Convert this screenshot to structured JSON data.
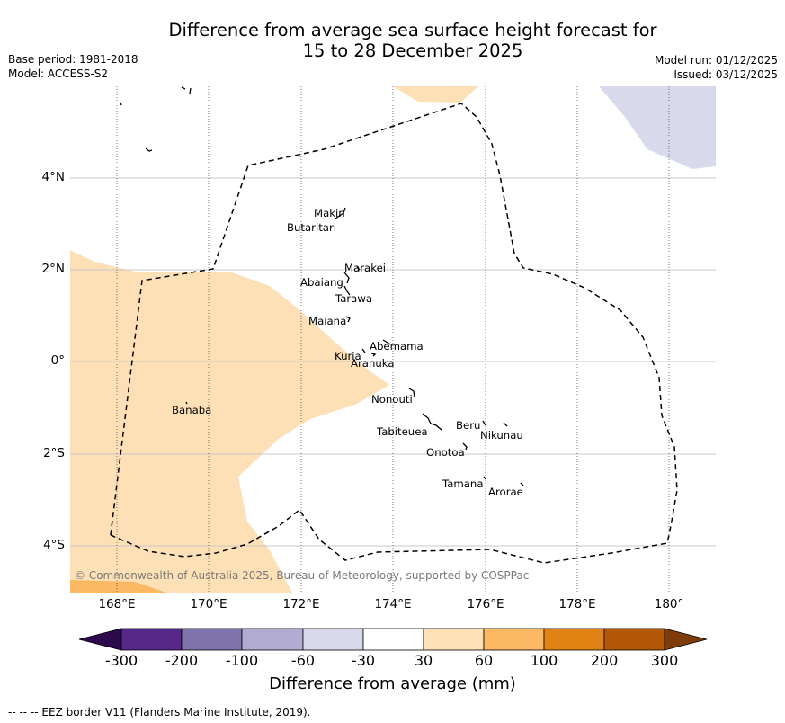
{
  "title": {
    "line1": "Difference from average sea surface height forecast for",
    "line2": "15 to 28 December 2025"
  },
  "meta_left": {
    "base_period": "Base period: 1981-2018",
    "model": "Model: ACCESS-S2"
  },
  "meta_right": {
    "model_run": "Model run: 01/12/2025",
    "issued": "Issued: 03/12/2025"
  },
  "latitude_labels": [
    "4°N",
    "2°N",
    "0°",
    "2°S",
    "4°S"
  ],
  "longitude_labels": [
    "168°E",
    "170°E",
    "172°E",
    "174°E",
    "176°E",
    "178°E",
    "180°"
  ],
  "islands": {
    "makin": "Makin",
    "butaritari": "Butaritari",
    "marakei": "Marakei",
    "abaiang": "Abaiang",
    "tarawa": "Tarawa",
    "maiana": "Maiana",
    "abemama": "Abemama",
    "kuria": "Kuria",
    "aranuka": "Aranuka",
    "banaba": "Banaba",
    "nonouti": "Nonouti",
    "beru": "Beru",
    "tabiteuea": "Tabiteuea",
    "nikunau": "Nikunau",
    "onotoa": "Onotoa",
    "tamana": "Tamana",
    "arorae": "Arorae"
  },
  "copyright": "© Commonwealth of Australia 2025, Bureau of Meteorology, supported by COSPPac",
  "colorbar": {
    "ticks": [
      "-300",
      "-200",
      "-100",
      "-60",
      "-30",
      "30",
      "60",
      "100",
      "200",
      "300"
    ],
    "label": "Difference from average (mm)",
    "colors": {
      "below_min": "#2d0a4e",
      "c1": "#542788",
      "c2": "#8073ac",
      "c3": "#b2abd2",
      "c4": "#d8daeb",
      "c5": "#ffffff",
      "c6": "#fee0b6",
      "c7": "#fdb863",
      "c8": "#e08214",
      "c9": "#b35806",
      "above_max": "#7f3b08"
    }
  },
  "footer": "--  --  -- EEZ border V11 (Flanders Marine Institute, 2019)."
}
